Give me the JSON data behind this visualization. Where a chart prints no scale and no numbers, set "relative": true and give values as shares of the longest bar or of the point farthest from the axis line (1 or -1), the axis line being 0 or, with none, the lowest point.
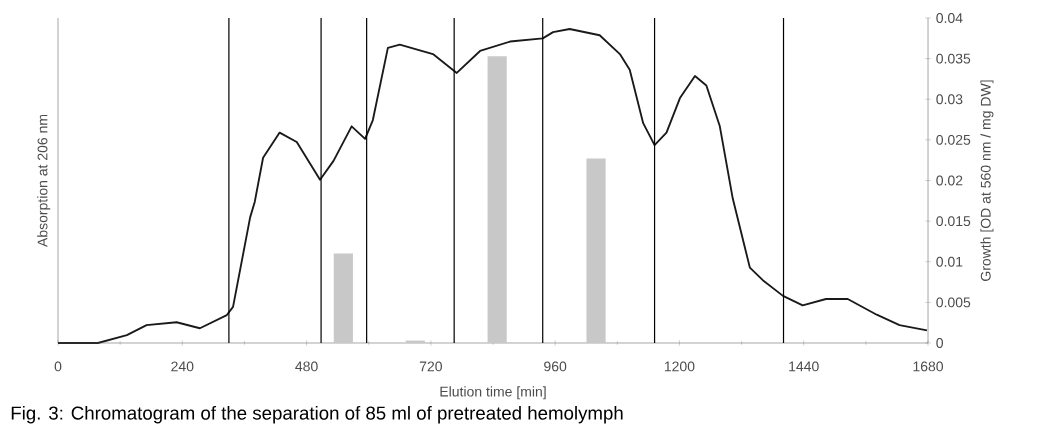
{
  "chart_data": {
    "type": "line",
    "xlabel": "Elution time [min]",
    "ylabel": "Absorption at 206 nm",
    "y2label": "Growth [OD at 560 nm / mg DW]",
    "relative": true,
    "xlim": [
      0,
      1680
    ],
    "xticks": [
      0,
      240,
      480,
      720,
      960,
      1200,
      1440,
      1680
    ],
    "y2lim": [
      0,
      0.04
    ],
    "y2ticks": [
      0,
      0.005,
      0.01,
      0.015,
      0.02,
      0.025,
      0.03,
      0.035,
      0.04
    ],
    "series": [
      {
        "color": "#1a1a1a",
        "x": [
          0,
          77,
          133,
          171,
          229,
          274,
          326,
          338,
          371,
          380,
          396,
          428,
          461,
          506,
          532,
          567,
          593,
          608,
          637,
          660,
          724,
          770,
          815,
          873,
          936,
          956,
          988,
          1046,
          1085,
          1104,
          1130,
          1152,
          1175,
          1201,
          1230,
          1252,
          1278,
          1303,
          1336,
          1361,
          1400,
          1438,
          1483,
          1525,
          1581,
          1625,
          1678
        ],
        "values": [
          0,
          0,
          0.025,
          0.057,
          0.066,
          0.047,
          0.089,
          0.115,
          0.4,
          0.45,
          0.59,
          0.67,
          0.64,
          0.52,
          0.58,
          0.69,
          0.65,
          0.71,
          0.94,
          0.95,
          0.92,
          0.86,
          0.93,
          0.96,
          0.97,
          0.99,
          1.0,
          0.98,
          0.92,
          0.87,
          0.7,
          0.63,
          0.67,
          0.78,
          0.85,
          0.82,
          0.69,
          0.46,
          0.24,
          0.2,
          0.15,
          0.12,
          0.14,
          0.14,
          0.09,
          0.057,
          0.04
        ]
      },
      {
        "type": "bar",
        "axis": "y2",
        "color": "#c8c8c8",
        "x": [
          551,
          690,
          848,
          1039
        ],
        "values": [
          0.011,
          0.0003,
          0.0353,
          0.0227
        ]
      }
    ],
    "ref_lines": [
      {
        "axis": "x",
        "value": 330
      },
      {
        "axis": "x",
        "value": 508
      },
      {
        "axis": "x",
        "value": 596
      },
      {
        "axis": "x",
        "value": 765
      },
      {
        "axis": "x",
        "value": 936
      },
      {
        "axis": "x",
        "value": 1152
      },
      {
        "axis": "x",
        "value": 1401
      }
    ],
    "annotations": [
      "Fig. 3: Chromatogram of the separation of 85 ml of pretreated hemolymph"
    ]
  }
}
